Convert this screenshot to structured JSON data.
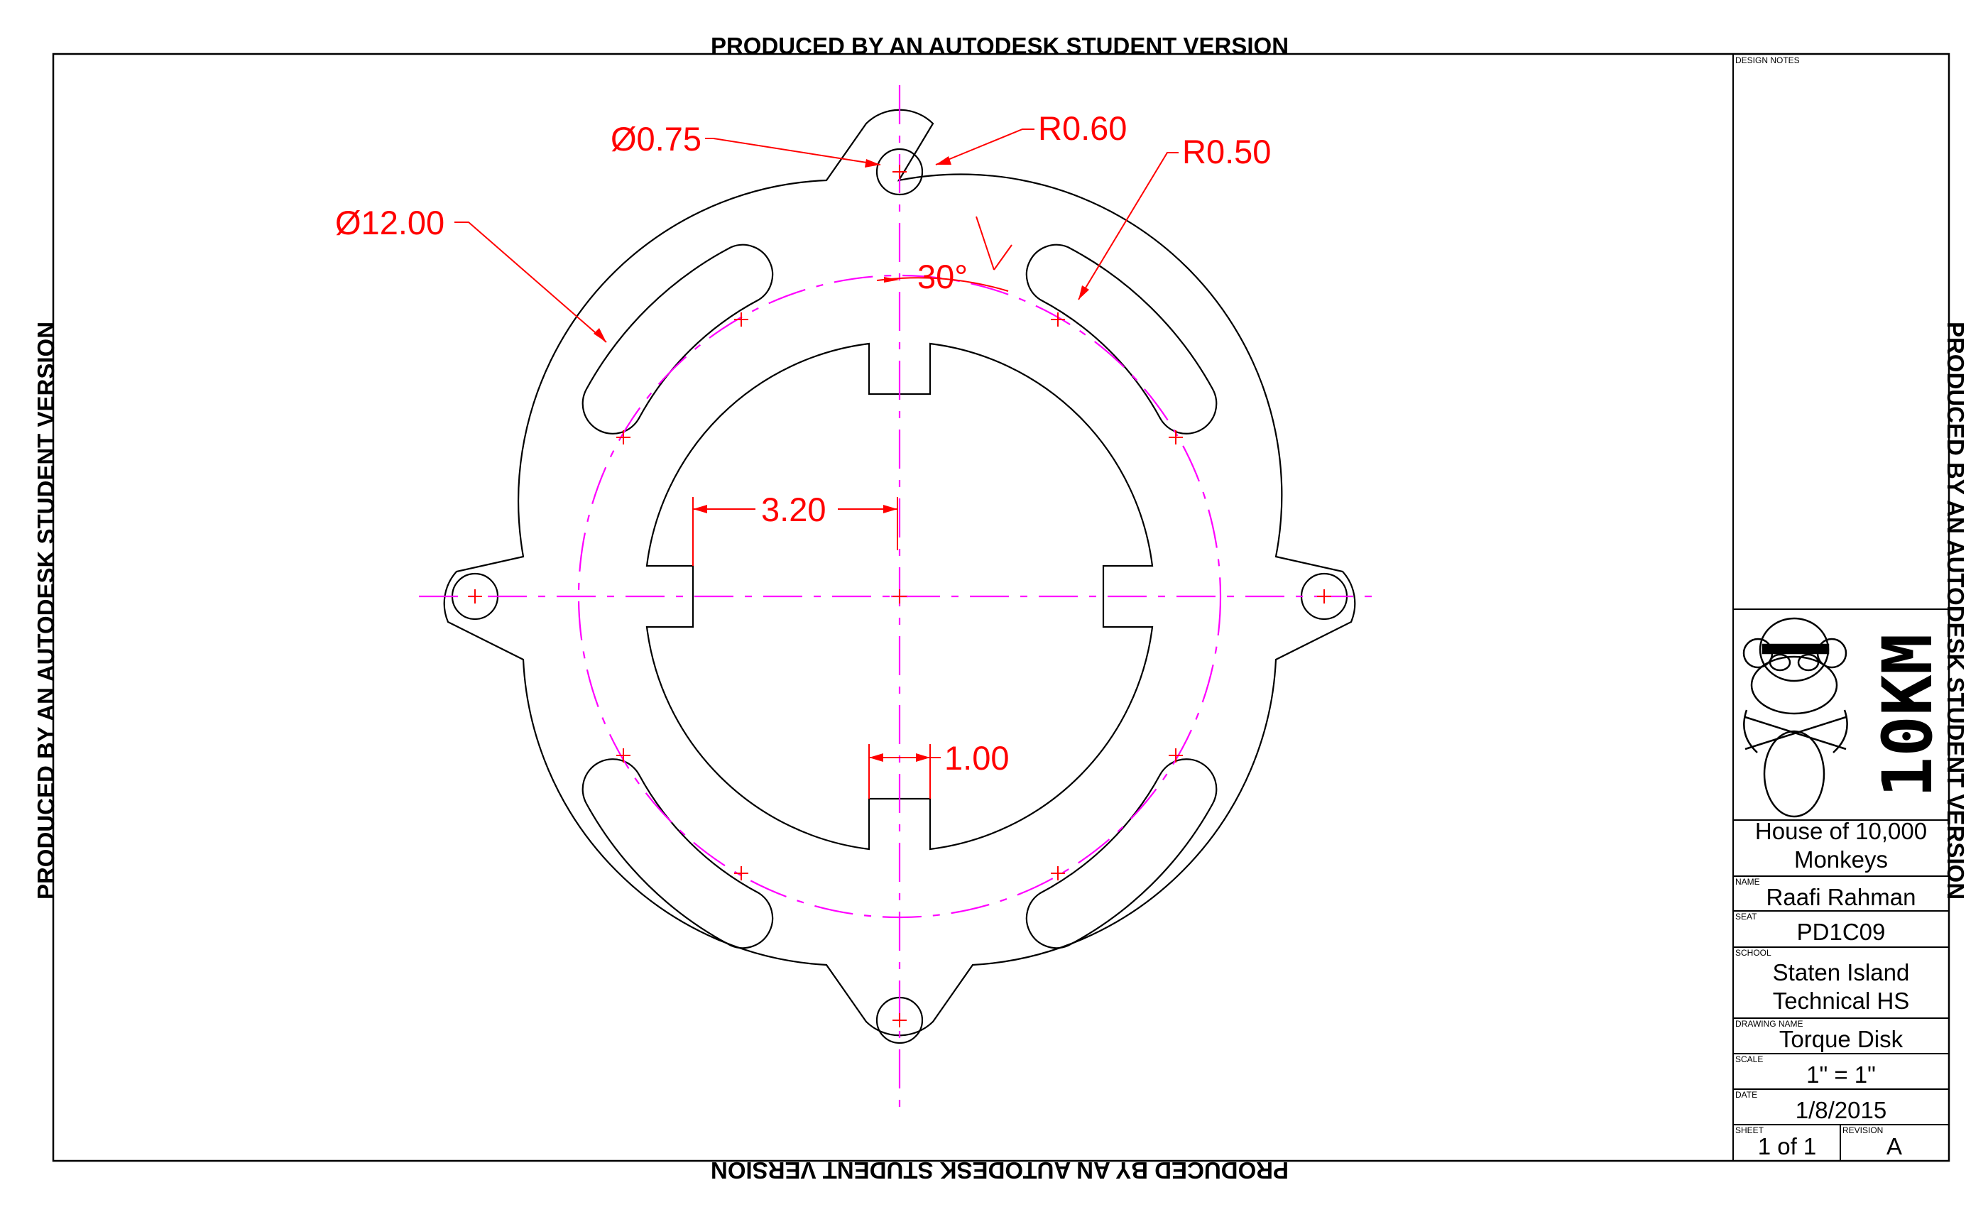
{
  "watermark": "PRODUCED BY AN AUTODESK STUDENT VERSION",
  "dimensions": {
    "hole_diameter": "Ø0.75",
    "lobe_radius": "R0.60",
    "slot_radius": "R0.50",
    "outer_diameter": "Ø12.00",
    "angle": "30°",
    "inner_offset": "3.20",
    "notch_width": "1.00"
  },
  "title_block": {
    "design_notes_label": "DESIGN NOTES",
    "logo_text": "10KM",
    "company_line1": "House of 10,000",
    "company_line2": "Monkeys",
    "name_label": "NAME",
    "name_value": "Raafi Rahman",
    "seat_label": "SEAT",
    "seat_value": "PD1C09",
    "school_label": "SCHOOL",
    "school_line1": "Staten Island",
    "school_line2": "Technical HS",
    "drawing_name_label": "DRAWING NAME",
    "drawing_name_value": "Torque Disk",
    "scale_label": "SCALE",
    "scale_value": "1\" = 1\"",
    "date_label": "DATE",
    "date_value": "1/8/2015",
    "sheet_label": "SHEET",
    "sheet_value": "1 of 1",
    "revision_label": "REVISION",
    "revision_value": "A"
  }
}
